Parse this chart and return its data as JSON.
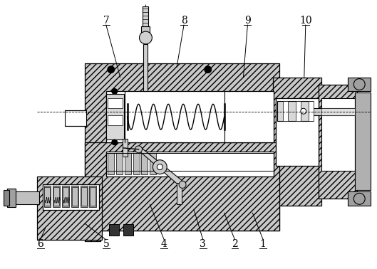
{
  "background_color": "#ffffff",
  "hatch_color": "#c8c8c8",
  "hatch_pattern": "////",
  "figsize": [
    5.29,
    3.78
  ],
  "dpi": 100,
  "labels_data": [
    [
      "1",
      370,
      344,
      370,
      338,
      355,
      300
    ],
    [
      "2",
      330,
      344,
      330,
      338,
      315,
      300
    ],
    [
      "3",
      285,
      344,
      285,
      338,
      272,
      295
    ],
    [
      "4",
      230,
      344,
      230,
      338,
      210,
      288
    ],
    [
      "5",
      148,
      344,
      148,
      338,
      118,
      315
    ],
    [
      "6",
      55,
      344,
      55,
      338,
      62,
      322
    ],
    [
      "7",
      148,
      28,
      148,
      34,
      168,
      108
    ],
    [
      "8",
      258,
      28,
      258,
      34,
      248,
      93
    ],
    [
      "9",
      348,
      28,
      348,
      34,
      342,
      108
    ],
    [
      "10",
      430,
      28,
      430,
      34,
      428,
      108
    ]
  ]
}
